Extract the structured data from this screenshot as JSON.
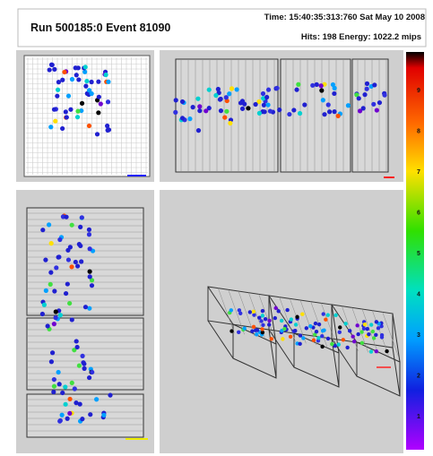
{
  "header": {
    "run": "Run 500185:0 Event 81090",
    "time": "Time: 15:40:35:313:760 Sat May 10 2008",
    "stats": "Hits: 198  Energy: 1022.2 mips"
  },
  "colorbar": {
    "labels": [
      "9",
      "8",
      "7",
      "6",
      "5",
      "4",
      "3",
      "2",
      "1"
    ]
  }
}
